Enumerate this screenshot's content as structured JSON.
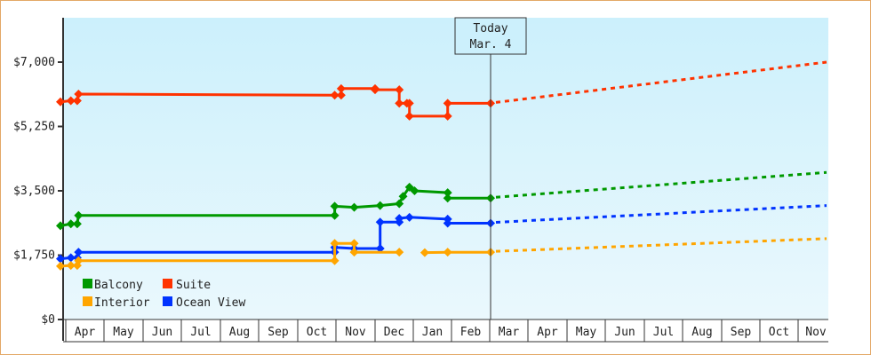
{
  "chart_data": {
    "type": "line",
    "title": "",
    "xlabel": "",
    "ylabel": "",
    "ylim": [
      0,
      8400
    ],
    "y_ticks": [
      "$0",
      "$1,750",
      "$3,500",
      "$5,250",
      "$7,000"
    ],
    "y_tick_values": [
      0,
      1750,
      3500,
      5250,
      7000
    ],
    "x_ticks": [
      "Apr",
      "May",
      "Jun",
      "Jul",
      "Aug",
      "Sep",
      "Oct",
      "Nov",
      "Dec",
      "Jan",
      "Feb",
      "Mar",
      "Apr",
      "May",
      "Jun",
      "Jul",
      "Aug",
      "Sep",
      "Oct",
      "Nov"
    ],
    "grid": false,
    "legend_position": "lower-left inside",
    "today_marker": {
      "line1": "Today",
      "line2": "Mar. 4"
    },
    "colors": {
      "Balcony": "#009900",
      "Suite": "#ff3300",
      "Interior": "#ffa500",
      "Ocean View": "#0033ff",
      "background_top": "#ccf0fc",
      "background_bottom": "#eaf8fd",
      "border": "#e3a866"
    },
    "series": [
      {
        "name": "Suite",
        "color": "#ff3300",
        "points_history": [
          [
            "Apr 1",
            5920
          ],
          [
            "Apr 5",
            5950
          ],
          [
            "Apr 10",
            5950
          ],
          [
            "Apr 11",
            6130
          ],
          [
            "Oct 30",
            6100
          ],
          [
            "Nov 5",
            6100
          ],
          [
            "Nov 5",
            6280
          ],
          [
            "Dec 1",
            6280
          ],
          [
            "Dec 1",
            6250
          ],
          [
            "Dec 20",
            6250
          ],
          [
            "Dec 20",
            5880
          ],
          [
            "Dec 26",
            5880
          ],
          [
            "Dec 28",
            5880
          ],
          [
            "Dec 28",
            5530
          ],
          [
            "Jan 28",
            5530
          ],
          [
            "Jan 28",
            5880
          ],
          [
            "Mar 4",
            5880
          ]
        ],
        "forecast_end": {
          "x": "Nov 30",
          "y": 7000
        }
      },
      {
        "name": "Balcony",
        "color": "#009900",
        "points_history": [
          [
            "Apr 1",
            2550
          ],
          [
            "Apr 5",
            2600
          ],
          [
            "Apr 10",
            2600
          ],
          [
            "Apr 11",
            2830
          ],
          [
            "Oct 30",
            2830
          ],
          [
            "Oct 30",
            3080
          ],
          [
            "Nov 15",
            3050
          ],
          [
            "Dec 5",
            3100
          ],
          [
            "Dec 20",
            3150
          ],
          [
            "Dec 23",
            3350
          ],
          [
            "Dec 28",
            3600
          ],
          [
            "Jan 2",
            3500
          ],
          [
            "Jan 28",
            3450
          ],
          [
            "Jan 28",
            3300
          ],
          [
            "Mar 4",
            3300
          ]
        ],
        "forecast_end": {
          "x": "Nov 30",
          "y": 4000
        }
      },
      {
        "name": "Ocean View",
        "color": "#0033ff",
        "points_history": [
          [
            "Apr 1",
            1650
          ],
          [
            "Apr 5",
            1680
          ],
          [
            "Apr 10",
            1680
          ],
          [
            "Apr 11",
            1830
          ],
          [
            "Oct 30",
            1830
          ],
          [
            "Oct 30",
            1960
          ],
          [
            "Nov 15",
            1930
          ],
          [
            "Dec 5",
            1930
          ],
          [
            "Dec 5",
            2650
          ],
          [
            "Dec 20",
            2650
          ],
          [
            "Dec 20",
            2750
          ],
          [
            "Dec 28",
            2780
          ],
          [
            "Jan 28",
            2730
          ],
          [
            "Jan 28",
            2620
          ],
          [
            "Mar 4",
            2620
          ]
        ],
        "forecast_end": {
          "x": "Nov 30",
          "y": 3100
        }
      },
      {
        "name": "Interior",
        "color": "#ffa500",
        "points_history": [
          [
            "Apr 1",
            1450
          ],
          [
            "Apr 5",
            1470
          ],
          [
            "Apr 10",
            1470
          ],
          [
            "Apr 11",
            1600
          ],
          [
            "Oct 30",
            1600
          ],
          [
            "Oct 30",
            2070
          ],
          [
            "Nov 15",
            2070
          ],
          [
            "Nov 15",
            1830
          ],
          [
            "Dec 20",
            1830
          ],
          [
            "Jan 10",
            1820
          ],
          [
            "Jan 28",
            1830
          ],
          [
            "Mar 4",
            1830
          ]
        ],
        "forecast_end": {
          "x": "Nov 30",
          "y": 2200
        }
      }
    ]
  },
  "legend": {
    "items": [
      {
        "label": "Balcony",
        "color": "#009900"
      },
      {
        "label": "Suite",
        "color": "#ff3300"
      },
      {
        "label": "Interior",
        "color": "#ffa500"
      },
      {
        "label": "Ocean View",
        "color": "#0033ff"
      }
    ]
  }
}
